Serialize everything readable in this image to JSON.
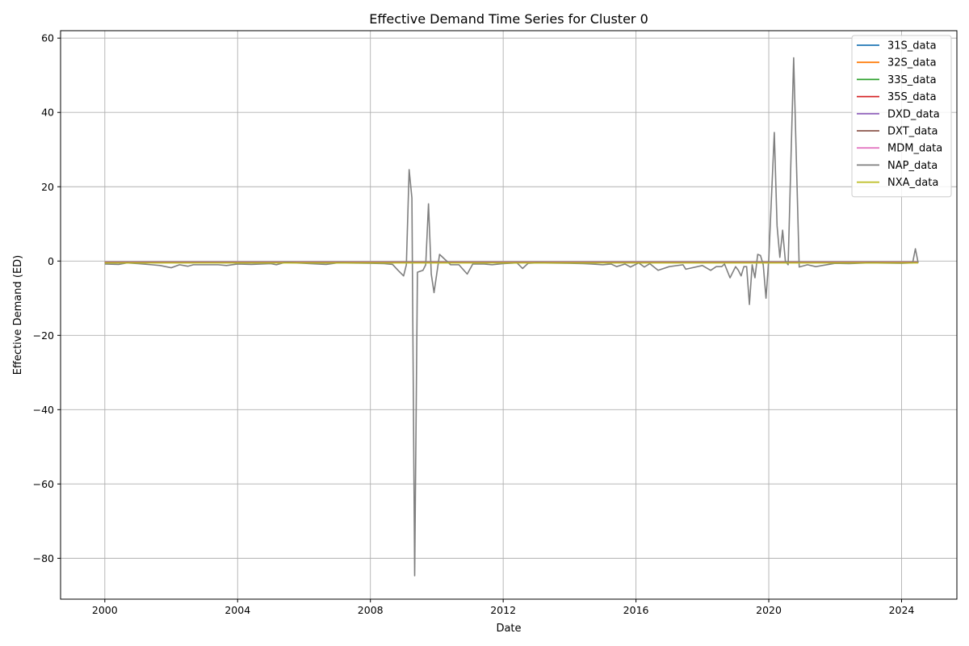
{
  "chart_data": {
    "type": "line",
    "title": "Effective Demand Time Series for Cluster 0",
    "xlabel": "Date",
    "ylabel": "Effective Demand (ED)",
    "xlim": [
      "1998-09",
      "2025-09"
    ],
    "ylim": [
      -91,
      62
    ],
    "x_ticks": [
      "2000",
      "2004",
      "2008",
      "2012",
      "2016",
      "2020",
      "2024"
    ],
    "y_ticks": [
      60,
      40,
      20,
      0,
      -20,
      -40,
      -60,
      -80
    ],
    "y_tick_labels": [
      "60",
      "40",
      "20",
      "0",
      "−20",
      "−40",
      "−60",
      "−80"
    ],
    "grid": true,
    "legend_position": "top-right",
    "series": [
      {
        "name": "31S_data",
        "color": "#1f77b4",
        "x": [
          "2000-01",
          "2024-07"
        ],
        "values": [
          -0.3,
          -0.3
        ]
      },
      {
        "name": "32S_data",
        "color": "#ff7f0e",
        "x": [
          "2000-01",
          "2024-07"
        ],
        "values": [
          -0.4,
          -0.4
        ]
      },
      {
        "name": "33S_data",
        "color": "#2ca02c",
        "x": [
          "2000-01",
          "2024-07"
        ],
        "values": [
          -0.35,
          -0.35
        ]
      },
      {
        "name": "35S_data",
        "color": "#d62728",
        "x": [
          "2000-01",
          "2024-07"
        ],
        "values": [
          -0.3,
          -0.3
        ]
      },
      {
        "name": "DXD_data",
        "color": "#9467bd",
        "x": [
          "2000-01",
          "2024-07"
        ],
        "values": [
          -0.4,
          -0.4
        ]
      },
      {
        "name": "DXT_data",
        "color": "#8c564b",
        "x": [
          "2000-01",
          "2024-07"
        ],
        "values": [
          -0.35,
          -0.35
        ]
      },
      {
        "name": "MDM_data",
        "color": "#e377c2",
        "x": [
          "2000-01",
          "2024-07"
        ],
        "values": [
          -0.45,
          -0.45
        ]
      },
      {
        "name": "NAP_data",
        "color": "#7f7f7f",
        "x": [
          "2000-01",
          "2000-06",
          "2000-09",
          "2001-01",
          "2001-06",
          "2001-09",
          "2002-01",
          "2002-04",
          "2002-07",
          "2002-09",
          "2003-01",
          "2003-06",
          "2003-09",
          "2004-01",
          "2004-06",
          "2005-01",
          "2005-03",
          "2005-06",
          "2006-01",
          "2006-09",
          "2007-01",
          "2008-01",
          "2008-06",
          "2008-09",
          "2008-11",
          "2009-01",
          "2009-02",
          "2009-03",
          "2009-04",
          "2009-05",
          "2009-06",
          "2009-08",
          "2009-09",
          "2009-10",
          "2009-11",
          "2009-12",
          "2010-02",
          "2010-06",
          "2010-09",
          "2010-12",
          "2011-02",
          "2011-06",
          "2011-09",
          "2012-01",
          "2012-06",
          "2012-08",
          "2012-10",
          "2013-01",
          "2014-01",
          "2014-06",
          "2014-09",
          "2015-01",
          "2015-04",
          "2015-06",
          "2015-09",
          "2015-11",
          "2016-02",
          "2016-04",
          "2016-06",
          "2016-09",
          "2017-01",
          "2017-06",
          "2017-07",
          "2018-01",
          "2018-04",
          "2018-06",
          "2018-08",
          "2018-09",
          "2018-11",
          "2019-01",
          "2019-02",
          "2019-03",
          "2019-04",
          "2019-05",
          "2019-06",
          "2019-07",
          "2019-08",
          "2019-09",
          "2019-10",
          "2019-11",
          "2019-12",
          "2020-01",
          "2020-03",
          "2020-04",
          "2020-05",
          "2020-06",
          "2020-07",
          "2020-08",
          "2020-10",
          "2020-12",
          "2021-03",
          "2021-06",
          "2022-01",
          "2022-06",
          "2023-01",
          "2024-01",
          "2024-05",
          "2024-06",
          "2024-07"
        ],
        "values": [
          -0.8,
          -0.9,
          -0.5,
          -0.7,
          -1.0,
          -1.2,
          -1.8,
          -1.0,
          -1.4,
          -1.0,
          -1.0,
          -1.0,
          -1.2,
          -0.8,
          -0.9,
          -0.7,
          -1.0,
          -0.4,
          -0.6,
          -0.9,
          -0.5,
          -0.6,
          -0.7,
          -0.9,
          -2.5,
          -4.0,
          -1.0,
          24.6,
          17.0,
          -84.7,
          -3.0,
          -2.5,
          -1.0,
          15.4,
          -3.5,
          -8.5,
          1.8,
          -1.0,
          -1.0,
          -3.5,
          -0.8,
          -0.8,
          -1.0,
          -0.7,
          -0.5,
          -2.0,
          -0.6,
          -0.5,
          -0.6,
          -0.7,
          -0.8,
          -1.0,
          -0.8,
          -1.5,
          -0.8,
          -1.6,
          -0.5,
          -1.6,
          -0.7,
          -2.5,
          -1.5,
          -1.0,
          -2.2,
          -1.2,
          -2.5,
          -1.5,
          -1.5,
          -0.8,
          -4.5,
          -1.5,
          -2.5,
          -4.0,
          -1.5,
          -1.5,
          -11.7,
          -1.0,
          -4.5,
          1.8,
          1.5,
          -1.0,
          -10.0,
          0.5,
          34.6,
          9.5,
          1.0,
          8.3,
          0.0,
          -1.0,
          54.7,
          -1.6,
          -1.0,
          -1.5,
          -0.6,
          -0.7,
          -0.5,
          -0.6,
          -0.5,
          3.3,
          -0.5
        ]
      },
      {
        "name": "NXA_data",
        "color": "#bcbd22",
        "x": [
          "2000-01",
          "2024-07"
        ],
        "values": [
          -0.5,
          -0.5
        ]
      }
    ]
  }
}
